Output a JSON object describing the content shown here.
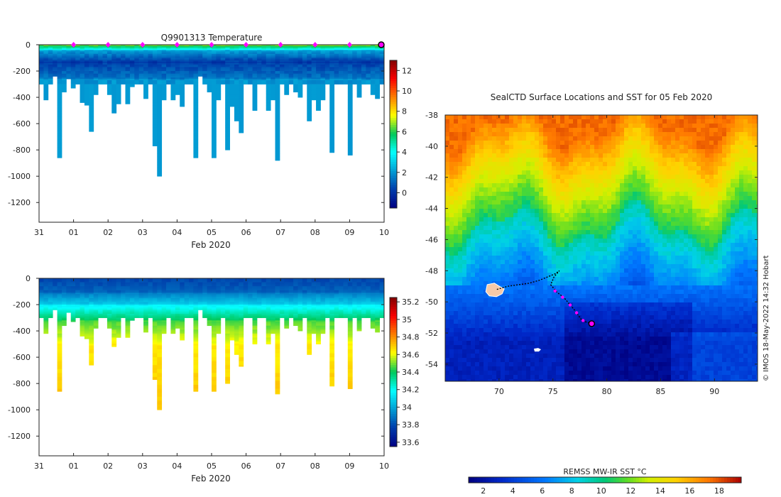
{
  "chart_data": [
    {
      "type": "heatmap",
      "title": "Q9901313  Temperature",
      "xlabel": "Feb 2020",
      "ylabel": "",
      "x_tick_labels": [
        "31",
        "01",
        "02",
        "03",
        "04",
        "05",
        "06",
        "07",
        "08",
        "09",
        "10"
      ],
      "x_range_days": [
        0,
        10
      ],
      "y_ticks": [
        0,
        -200,
        -400,
        -600,
        -800,
        -1000,
        -1200
      ],
      "ylim": [
        -1350,
        0
      ],
      "surfacing_markers_day": [
        1,
        2,
        3,
        4,
        5,
        6,
        7,
        8,
        9
      ],
      "last_position_day": 10,
      "colorbar": {
        "min": -1.5,
        "max": 13,
        "ticks": [
          0,
          2,
          4,
          6,
          8,
          10,
          12
        ],
        "tick_labels": [
          "0",
          "2",
          "4",
          "6",
          "8",
          "10",
          "12"
        ]
      },
      "profile_max_depths_m": [
        -300,
        -420,
        -300,
        -240,
        -860,
        -360,
        -260,
        -330,
        -300,
        -440,
        -460,
        -660,
        -380,
        -300,
        -300,
        -380,
        -520,
        -450,
        -300,
        -450,
        -320,
        -300,
        -300,
        -410,
        -300,
        -770,
        -1000,
        -420,
        -300,
        -420,
        -380,
        -470,
        -300,
        -300,
        -860,
        -240,
        -300,
        -360,
        -860,
        -420,
        -300,
        -800,
        -470,
        -580,
        -670,
        -300,
        -300,
        -500,
        -300,
        -300,
        -500,
        -420,
        -880,
        -300,
        -380,
        -300,
        -360,
        -400,
        -300,
        -580,
        -420,
        -500,
        -420,
        -300,
        -820,
        -300,
        -300,
        -300,
        -840,
        -300,
        -400,
        -300,
        -300,
        -380,
        -410,
        -300
      ]
    },
    {
      "type": "heatmap",
      "title": "",
      "xlabel": "Feb 2020",
      "ylabel": "",
      "x_tick_labels": [
        "31",
        "01",
        "02",
        "03",
        "04",
        "05",
        "06",
        "07",
        "08",
        "09",
        "10"
      ],
      "y_ticks": [
        0,
        -200,
        -400,
        -600,
        -800,
        -1000,
        -1200
      ],
      "ylim": [
        -1350,
        0
      ],
      "colorbar": {
        "min": 33.55,
        "max": 35.25,
        "ticks": [
          33.6,
          33.8,
          34,
          34.2,
          34.4,
          34.6,
          34.8,
          35,
          35.2
        ],
        "tick_labels": [
          "33.6",
          "33.8",
          "34",
          "34.2",
          "34.4",
          "34.6",
          "34.8",
          "35",
          "35.2"
        ]
      }
    },
    {
      "type": "heatmap",
      "title": "SealCTD Surface Locations and SST for 05 Feb 2020",
      "xlabel": "",
      "ylabel": "",
      "x_ticks": [
        70,
        75,
        80,
        85,
        90
      ],
      "xlim": [
        65,
        94
      ],
      "y_ticks": [
        -38,
        -40,
        -42,
        -44,
        -46,
        -48,
        -50,
        -52,
        -54
      ],
      "ylim": [
        -55.1,
        -38
      ],
      "colorbar_label": "REMSS MW-IR SST °C",
      "colorbar": {
        "min": 1,
        "max": 19.5,
        "ticks": [
          2,
          4,
          6,
          8,
          10,
          12,
          14,
          16,
          18
        ],
        "tick_labels": [
          "2",
          "4",
          "6",
          "8",
          "10",
          "12",
          "14",
          "16",
          "18"
        ]
      },
      "track_lon_lat": [
        [
          69.8,
          -49.2
        ],
        [
          70.8,
          -49.0
        ],
        [
          71.8,
          -48.9
        ],
        [
          72.8,
          -48.8
        ],
        [
          73.8,
          -48.6
        ],
        [
          74.5,
          -48.4
        ],
        [
          75.2,
          -48.2
        ],
        [
          75.6,
          -48.0
        ],
        [
          75.1,
          -48.4
        ],
        [
          74.8,
          -48.9
        ],
        [
          75.4,
          -49.4
        ],
        [
          76.0,
          -49.7
        ],
        [
          76.6,
          -50.2
        ],
        [
          77.1,
          -50.6
        ],
        [
          77.6,
          -51.1
        ],
        [
          78.1,
          -51.3
        ],
        [
          78.6,
          -51.4
        ]
      ],
      "recent_fixes_lon_lat": [
        [
          75.2,
          -49.3
        ],
        [
          75.9,
          -49.7
        ],
        [
          76.6,
          -50.2
        ],
        [
          77.2,
          -50.7
        ],
        [
          77.8,
          -51.2
        ]
      ],
      "last_position_lon_lat": [
        78.6,
        -51.4
      ],
      "kerguelen_lon_lat": [
        69.3,
        -49.3
      ],
      "heard_lon_lat": [
        73.5,
        -53.1
      ]
    }
  ],
  "side_credit": "© IMOS 18-May-2022 14:32 Hobart"
}
